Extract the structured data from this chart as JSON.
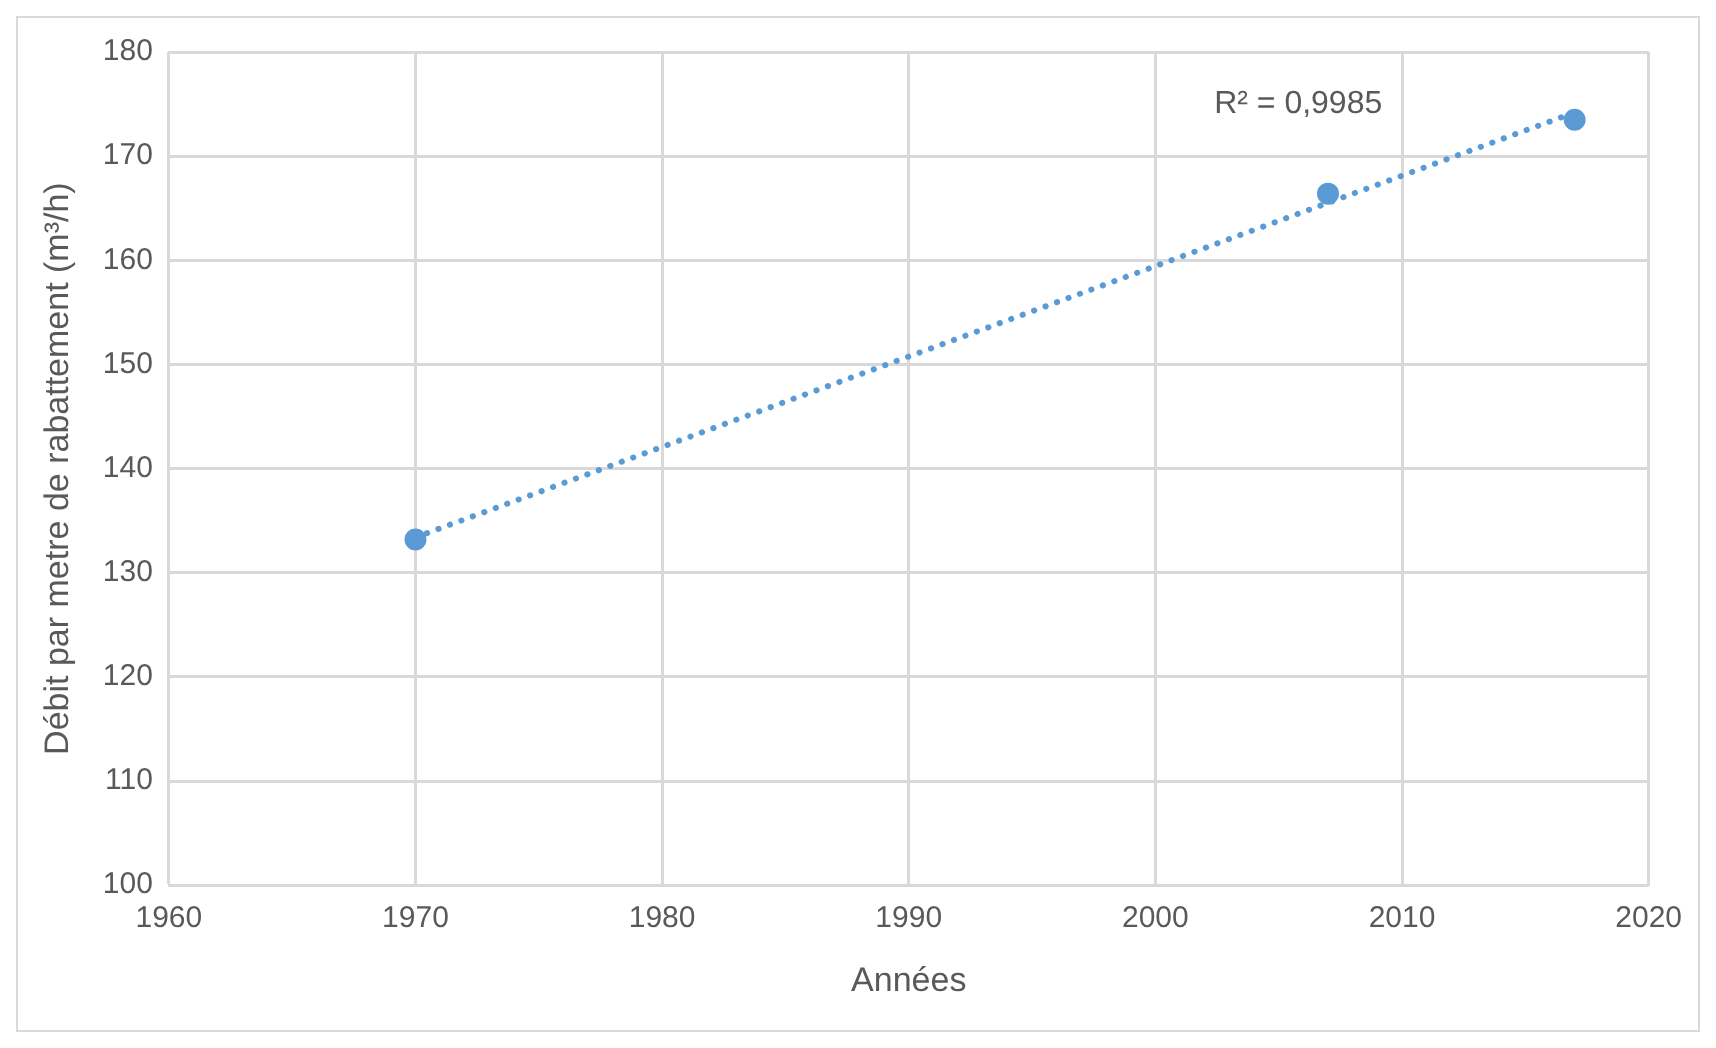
{
  "chart_data": {
    "type": "scatter",
    "xlabel": "Années",
    "ylabel": "Débit par metre de rabattement (m³/h)",
    "x": [
      1970,
      2007,
      2017
    ],
    "series": [
      {
        "type": "scatter",
        "color": "#5b9bd5",
        "values": [
          133.2,
          166.4,
          173.5
        ],
        "marker": "circle"
      },
      {
        "type": "line",
        "color": "#5b9bd5",
        "x": [
          1970,
          2017
        ],
        "values": [
          133.4,
          174.2
        ],
        "line_style": "dotted",
        "marker": "none"
      }
    ],
    "xlim": [
      1960,
      2020
    ],
    "xticks": [
      1960,
      1970,
      1980,
      1990,
      2000,
      2010,
      2020
    ],
    "ylim": [
      100,
      180
    ],
    "yticks": [
      100,
      110,
      120,
      130,
      140,
      150,
      160,
      170,
      180
    ],
    "grid": true,
    "legend": false,
    "annotations": [
      "R² = 0,9985"
    ]
  }
}
